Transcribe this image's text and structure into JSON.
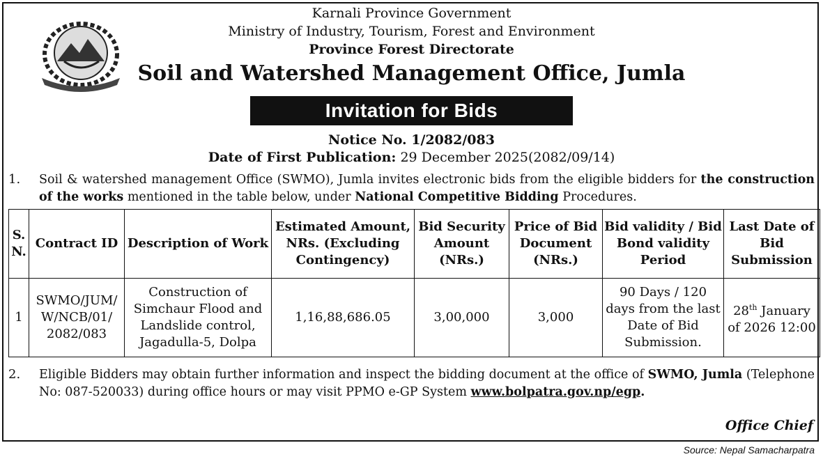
{
  "header": {
    "line1": "Karnali Province Government",
    "line2": "Ministry of Industry, Tourism, Forest and Environment",
    "line3": "Province Forest Directorate",
    "office": "Soil and Watershed Management Office, Jumla"
  },
  "banner": "Invitation for Bids",
  "notice": "Notice No. 1/2082/083",
  "publication": {
    "label": "Date of First Publication:",
    "value": "29 December 2025(2082/09/14)"
  },
  "paragraphs": [
    {
      "number": "1.",
      "parts": [
        "Soil & watershed management Office (SWMO), Jumla invites electronic bids from the eligible bidders for ",
        "the construction of the works",
        " mentioned in the table below, under ",
        "National Competitive Bidding",
        " Procedures."
      ]
    },
    {
      "number": "2.",
      "parts": [
        "Eligible Bidders may obtain further information and inspect the bidding document at the office of ",
        "SWMO, Jumla",
        " (Telephone No:  087-520033) during office hours or may visit PPMO e-GP System ",
        "www.bolpatra.gov.np/egp",
        "."
      ]
    }
  ],
  "table": {
    "headers": [
      "S. N.",
      "Contract ID",
      "Description of Work",
      "Estimated Amount, NRs. (Excluding Contingency)",
      "Bid Security Amount (NRs.)",
      "Price of Bid Document (NRs.)",
      "Bid validity / Bid Bond validity Period",
      "Last Date of Bid Submission"
    ],
    "rows": [
      [
        "1",
        "SWMO/JUM/ W/NCB/01/ 2082/083",
        "Construction of Simchaur Flood and Landslide control, Jagadulla-5, Dolpa",
        "1,16,88,686.05",
        "3,00,000",
        "3,000",
        "90 Days / 120 days from the last Date of Bid Submission.",
        {
          "day": "28",
          "suffix": "th",
          "rest": "January of 2026 12:00"
        }
      ]
    ]
  },
  "signature": "Office Chief",
  "source": "Source: Nepal Samacharpatra"
}
